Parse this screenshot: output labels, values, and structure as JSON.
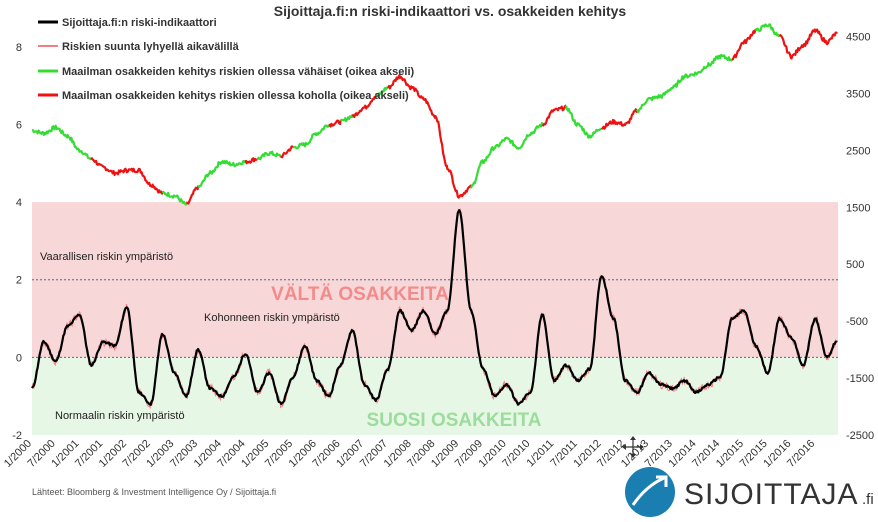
{
  "chart_data": {
    "type": "line",
    "title": "Sijoittaja.fi:n riski-indikaattori vs. osakkeiden kehitys",
    "x_start": "2000-01",
    "x_end": "2016-12",
    "x_ticks": [
      "1/2000",
      "7/2000",
      "1/2001",
      "7/2001",
      "1/2002",
      "7/2002",
      "1/2003",
      "7/2003",
      "1/2004",
      "7/2004",
      "1/2005",
      "7/2005",
      "1/2006",
      "7/2006",
      "1/2007",
      "7/2007",
      "1/2008",
      "7/2008",
      "1/2009",
      "7/2009",
      "1/2010",
      "7/2010",
      "1/2011",
      "7/2011",
      "1/2012",
      "7/2012",
      "1/2013",
      "7/2013",
      "1/2014",
      "7/2014",
      "1/2015",
      "7/2015",
      "1/2016",
      "7/2016"
    ],
    "y_left": {
      "ylim": [
        -2,
        9
      ],
      "ticks": [
        "8",
        "6",
        "4",
        "2",
        "0",
        "-2"
      ]
    },
    "y_right": {
      "ylim": [
        -2500,
        5000
      ],
      "ticks": [
        "4500",
        "3500",
        "2500",
        "1500",
        "500",
        "-500",
        "-1500",
        "-2500"
      ]
    },
    "zones": [
      {
        "name": "avoid",
        "from": 0,
        "to": 4,
        "color": "#f7d7d7"
      },
      {
        "name": "favor",
        "from": -2,
        "to": 0,
        "color": "#e6f7e6"
      }
    ],
    "threshold_lines": [
      2,
      0
    ],
    "annotations": {
      "dangerous": "Vaarallisen riskin ympäristö",
      "elevated": "Kohonneen riskin ympäristö",
      "normal": "Normaalin riskin ympäristö",
      "avoid": "VÄLTÄ OSAKKEITA",
      "favor": "SUOSI OSAKKEITA"
    },
    "legend": [
      {
        "label": "Sijoittaja.fi:n riski-indikaattori",
        "color": "#000000"
      },
      {
        "label": "Riskien suunta lyhyellä aikavälillä",
        "color": "#f08080"
      },
      {
        "label": "Maailman osakkeiden kehitys riskien ollessa vähäiset (oikea akseli)",
        "color": "#33dd33"
      },
      {
        "label": "Maailman osakkeiden kehitys riskien ollessa koholla (oikea akseli)",
        "color": "#ee1111"
      }
    ],
    "series": [
      {
        "name": "Sijoittaja.fi:n riski-indikaattori",
        "axis": "left",
        "x": [
          2000.0,
          2000.25,
          2000.5,
          2000.75,
          2001.0,
          2001.25,
          2001.5,
          2001.75,
          2002.0,
          2002.25,
          2002.5,
          2002.75,
          2003.0,
          2003.25,
          2003.5,
          2003.75,
          2004.0,
          2004.25,
          2004.5,
          2004.75,
          2005.0,
          2005.25,
          2005.5,
          2005.75,
          2006.0,
          2006.25,
          2006.5,
          2006.75,
          2007.0,
          2007.25,
          2007.5,
          2007.75,
          2008.0,
          2008.25,
          2008.5,
          2008.75,
          2009.0,
          2009.25,
          2009.5,
          2009.75,
          2010.0,
          2010.25,
          2010.5,
          2010.75,
          2011.0,
          2011.25,
          2011.5,
          2011.75,
          2012.0,
          2012.25,
          2012.5,
          2012.75,
          2013.0,
          2013.25,
          2013.5,
          2013.75,
          2014.0,
          2014.25,
          2014.5,
          2014.75,
          2015.0,
          2015.25,
          2015.5,
          2015.75,
          2016.0,
          2016.25,
          2016.5,
          2016.75,
          2016.95
        ],
        "values": [
          -0.8,
          0.4,
          -0.1,
          0.8,
          1.1,
          -0.2,
          0.4,
          0.3,
          1.3,
          -0.9,
          -1.2,
          0.6,
          -0.4,
          -1.0,
          0.2,
          -0.8,
          -1.0,
          -0.5,
          0.1,
          -0.9,
          -0.4,
          -1.2,
          -0.5,
          0.3,
          -0.6,
          -1.0,
          -0.2,
          0.7,
          -0.7,
          -1.1,
          -0.3,
          1.2,
          0.7,
          1.2,
          0.6,
          1.2,
          3.8,
          1.2,
          -0.3,
          -1.0,
          -0.7,
          -1.2,
          -0.9,
          1.1,
          -0.6,
          -0.2,
          -0.6,
          -0.3,
          2.1,
          1.0,
          -0.6,
          -0.9,
          -0.4,
          -0.7,
          -0.8,
          -0.6,
          -0.9,
          -0.7,
          -0.5,
          1.0,
          1.2,
          0.3,
          -0.4,
          1.0,
          0.5,
          -0.2,
          1.0,
          0.0,
          0.4
        ]
      },
      {
        "name": "Maailman osakkeiden kehitys (oikea akseli)",
        "axis": "right",
        "x": [
          2000.0,
          2000.25,
          2000.5,
          2000.75,
          2001.0,
          2001.25,
          2001.5,
          2001.75,
          2002.0,
          2002.25,
          2002.5,
          2002.75,
          2003.0,
          2003.25,
          2003.5,
          2003.75,
          2004.0,
          2004.25,
          2004.5,
          2004.75,
          2005.0,
          2005.25,
          2005.5,
          2005.75,
          2006.0,
          2006.25,
          2006.5,
          2006.75,
          2007.0,
          2007.25,
          2007.5,
          2007.75,
          2008.0,
          2008.25,
          2008.5,
          2008.75,
          2009.0,
          2009.25,
          2009.5,
          2009.75,
          2010.0,
          2010.25,
          2010.5,
          2010.75,
          2011.0,
          2011.25,
          2011.5,
          2011.75,
          2012.0,
          2012.25,
          2012.5,
          2012.75,
          2013.0,
          2013.25,
          2013.5,
          2013.75,
          2014.0,
          2014.25,
          2014.5,
          2014.75,
          2015.0,
          2015.25,
          2015.5,
          2015.75,
          2016.0,
          2016.25,
          2016.5,
          2016.75,
          2016.95
        ],
        "values": [
          2850,
          2800,
          2900,
          2750,
          2500,
          2350,
          2200,
          2100,
          2150,
          2150,
          1900,
          1750,
          1700,
          1550,
          1850,
          2100,
          2300,
          2250,
          2300,
          2350,
          2450,
          2400,
          2550,
          2600,
          2800,
          2950,
          3000,
          3100,
          3250,
          3450,
          3600,
          3800,
          3600,
          3400,
          3100,
          2200,
          1700,
          1850,
          2300,
          2550,
          2700,
          2550,
          2800,
          2950,
          3200,
          3250,
          2950,
          2750,
          2900,
          3000,
          2950,
          3200,
          3400,
          3450,
          3600,
          3800,
          3850,
          4000,
          4150,
          4100,
          4400,
          4600,
          4700,
          4500,
          4150,
          4350,
          4600,
          4400,
          4550
        ],
        "risk_elevated": [
          0,
          0,
          0,
          0,
          0,
          1,
          1,
          1,
          1,
          1,
          1,
          0,
          0,
          1,
          0,
          0,
          0,
          0,
          1,
          0,
          0,
          1,
          0,
          0,
          0,
          1,
          0,
          1,
          1,
          0,
          1,
          1,
          1,
          1,
          1,
          1,
          1,
          0,
          0,
          0,
          0,
          0,
          0,
          1,
          1,
          0,
          0,
          0,
          1,
          1,
          1,
          0,
          0,
          0,
          0,
          0,
          0,
          0,
          0,
          1,
          1,
          0,
          0,
          1,
          1,
          1,
          1,
          1,
          1
        ]
      }
    ]
  },
  "source": "Lähteet: Bloomberg & Investment Intelligence Oy / Sijoittaja.fi",
  "logo": {
    "word": "SIJOITTAJA",
    "suffix": ".fi",
    "color": "#1a7fb0"
  }
}
